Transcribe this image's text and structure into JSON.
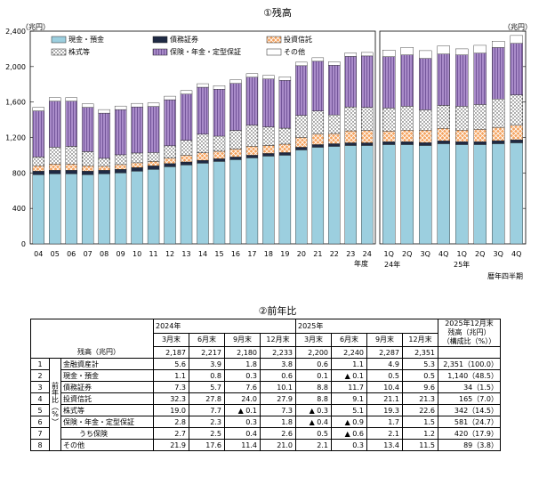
{
  "chart_data": {
    "type": "bar",
    "stacked": true,
    "title": "①残高",
    "unit_left": "（兆円）",
    "unit_right": "（兆円）",
    "yticks": [
      0,
      400,
      800,
      1200,
      1600,
      2000,
      2400
    ],
    "ylim": [
      0,
      2400
    ],
    "annual_label": "年度",
    "quarter_label": "暦年四半期",
    "annual_categories": [
      "04",
      "05",
      "06",
      "07",
      "08",
      "09",
      "10",
      "11",
      "12",
      "13",
      "14",
      "15",
      "16",
      "17",
      "18",
      "19",
      "20",
      "21",
      "22",
      "23",
      "24"
    ],
    "quarter_categories": [
      "1Q",
      "2Q",
      "3Q",
      "4Q",
      "1Q",
      "2Q",
      "3Q",
      "4Q"
    ],
    "quarter_year_labels": [
      "24年",
      "25年"
    ],
    "series": [
      {
        "name": "現金・預金",
        "color": "#9CCFDF",
        "pattern": "solid",
        "annual": [
          780,
          790,
          790,
          780,
          790,
          800,
          820,
          840,
          870,
          890,
          910,
          930,
          950,
          970,
          990,
          1000,
          1060,
          1090,
          1100,
          1110,
          1110
        ],
        "quarter": [
          1120,
          1120,
          1110,
          1130,
          1120,
          1120,
          1130,
          1140
        ]
      },
      {
        "name": "債務証券",
        "color": "#1F2A44",
        "pattern": "solid",
        "annual": [
          40,
          40,
          40,
          40,
          40,
          40,
          40,
          40,
          36,
          34,
          32,
          30,
          30,
          30,
          30,
          30,
          30,
          30,
          30,
          30,
          30
        ],
        "quarter": [
          32,
          32,
          32,
          32,
          32,
          32,
          34,
          34
        ]
      },
      {
        "name": "投資信託",
        "color": "#F5A25D",
        "pattern": "cross",
        "annual": [
          60,
          70,
          70,
          60,
          45,
          55,
          55,
          50,
          60,
          75,
          85,
          85,
          90,
          100,
          90,
          95,
          110,
          120,
          115,
          135,
          140
        ],
        "quarter": [
          120,
          130,
          140,
          140,
          130,
          140,
          150,
          165
        ]
      },
      {
        "name": "株式等",
        "color": "#FFFFFF",
        "pattern": "dots",
        "annual": [
          100,
          190,
          200,
          160,
          90,
          110,
          110,
          100,
          140,
          170,
          210,
          170,
          210,
          240,
          210,
          180,
          250,
          260,
          210,
          270,
          260
        ],
        "quarter": [
          260,
          270,
          230,
          260,
          270,
          280,
          320,
          342
        ]
      },
      {
        "name": "保険・年金・定型保証",
        "color": "#A98BC9",
        "pattern": "vlines",
        "annual": [
          520,
          520,
          510,
          500,
          510,
          510,
          520,
          520,
          520,
          520,
          530,
          530,
          530,
          540,
          540,
          540,
          560,
          560,
          560,
          570,
          580
        ],
        "quarter": [
          580,
          580,
          580,
          580,
          580,
          580,
          581,
          581
        ]
      },
      {
        "name": "その他",
        "color": "#FFFFFF",
        "pattern": "solid",
        "annual": [
          40,
          40,
          40,
          40,
          40,
          40,
          40,
          40,
          40,
          40,
          40,
          40,
          40,
          40,
          40,
          40,
          40,
          40,
          40,
          40,
          40
        ],
        "quarter": [
          75,
          85,
          88,
          91,
          68,
          88,
          72,
          89
        ]
      }
    ]
  },
  "table": {
    "title": "②前年比",
    "year_2024": "2024年",
    "year_2025": "2025年",
    "periods": [
      "3月末",
      "6月末",
      "9月末",
      "12月末",
      "3月末",
      "6月末",
      "9月末",
      "12月末"
    ],
    "last_col_header": [
      "2025年12月末",
      "残高（兆円）",
      "（構成比（%））"
    ],
    "balance_label": "残高（兆円）",
    "balance": [
      "2,187",
      "2,217",
      "2,180",
      "2,233",
      "2,200",
      "2,240",
      "2,287",
      "2,351"
    ],
    "side_label": "前年比（%）",
    "rows": [
      {
        "no": "1",
        "label": "金融資産計",
        "vals": [
          "5.6",
          "3.9",
          "1.8",
          "3.8",
          "0.6",
          "1.1",
          "4.9",
          "5.3"
        ],
        "last": "2,351（100.0）"
      },
      {
        "no": "2",
        "label": "現金・預金",
        "vals": [
          "1.1",
          "0.8",
          "0.3",
          "0.6",
          "0.1",
          "▲ 0.1",
          "0.5",
          "0.5"
        ],
        "last": "1,140（48.5）"
      },
      {
        "no": "3",
        "label": "債務証券",
        "vals": [
          "7.3",
          "5.7",
          "7.6",
          "10.1",
          "8.8",
          "11.7",
          "10.4",
          "9.6"
        ],
        "last": "34（1.5）"
      },
      {
        "no": "4",
        "label": "投資信託",
        "vals": [
          "32.3",
          "27.8",
          "24.0",
          "27.9",
          "8.8",
          "9.1",
          "21.1",
          "21.3"
        ],
        "last": "165（7.0）"
      },
      {
        "no": "5",
        "label": "株式等",
        "vals": [
          "19.0",
          "7.7",
          "▲ 0.1",
          "7.3",
          "▲ 0.3",
          "5.1",
          "19.3",
          "22.6"
        ],
        "last": "342（14.5）"
      },
      {
        "no": "6",
        "label": "保険・年金・定型保証",
        "vals": [
          "2.8",
          "2.3",
          "0.3",
          "1.8",
          "▲ 0.4",
          "▲ 0.9",
          "1.7",
          "1.5"
        ],
        "last": "581（24.7）"
      },
      {
        "no": "7",
        "label": "うち保険",
        "vals": [
          "2.7",
          "2.5",
          "0.4",
          "2.6",
          "0.5",
          "▲ 0.6",
          "2.1",
          "1.2"
        ],
        "last": "420（17.9）"
      },
      {
        "no": "8",
        "label": "その他",
        "vals": [
          "21.9",
          "17.6",
          "11.4",
          "21.0",
          "2.1",
          "0.3",
          "13.4",
          "11.5"
        ],
        "last": "89（3.8）"
      }
    ]
  }
}
